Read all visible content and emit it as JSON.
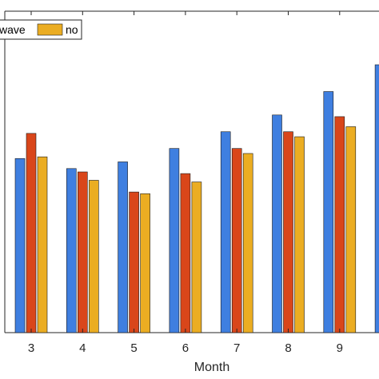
{
  "chart_data": {
    "type": "bar",
    "title": "",
    "xlabel": "Month",
    "ylabel": "",
    "categories": [
      "3",
      "4",
      "5",
      "6",
      "7",
      "8",
      "9",
      ""
    ],
    "series": [
      {
        "name": "",
        "color": "#3f7fe0",
        "values": [
          0.52,
          0.49,
          0.51,
          0.55,
          0.6,
          0.65,
          0.72,
          0.8
        ]
      },
      {
        "name": "",
        "color": "#d9461a",
        "values": [
          0.595,
          0.48,
          0.42,
          0.475,
          0.55,
          0.6,
          0.645,
          null
        ]
      },
      {
        "name": "",
        "color": "#ebad22",
        "values": [
          0.525,
          0.455,
          0.415,
          0.45,
          0.535,
          0.585,
          0.615,
          null
        ]
      }
    ],
    "ylim": [
      0,
      0.96
    ],
    "grid": false,
    "legend": {
      "placement": "top-left",
      "entries": [
        {
          "label": "wave",
          "color": "#d9461a"
        },
        {
          "label": "no",
          "color": "#ebad22"
        }
      ]
    }
  }
}
